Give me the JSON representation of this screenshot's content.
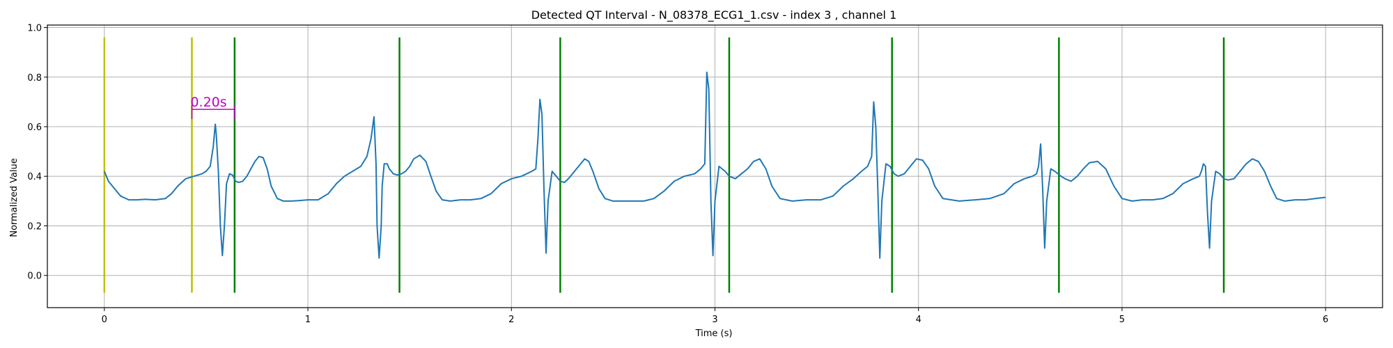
{
  "chart_data": {
    "type": "line",
    "title": "Detected QT Interval - N_08378_ECG1_1.csv - index 3 , channel 1",
    "xlabel": "Time (s)",
    "ylabel": "Normalized Value",
    "xlim": [
      -0.28,
      6.28
    ],
    "ylim": [
      -0.13,
      1.01
    ],
    "xticks": [
      0,
      1,
      2,
      3,
      4,
      5,
      6
    ],
    "yticks": [
      0.0,
      0.2,
      0.4,
      0.6,
      0.8,
      1.0
    ],
    "grid": true,
    "colors": {
      "signal": "#1f77b4",
      "onset_marker": "#bfbf00",
      "offset_marker": "#008000",
      "annotation": "#bf00bf",
      "grid": "#b0b0b0"
    },
    "vertical_markers": {
      "ymin": -0.07,
      "ymax": 0.96,
      "onset": [
        0.0,
        0.43
      ],
      "offset": [
        0.64,
        1.45,
        2.24,
        3.07,
        3.87,
        4.69,
        5.5
      ]
    },
    "annotation": {
      "text": "0.20s",
      "x_start": 0.43,
      "x_end": 0.64,
      "y": 0.67
    },
    "beat_r_times": [
      0.55,
      1.34,
      2.14,
      2.96,
      3.78,
      4.6,
      5.41
    ],
    "beat_r_peaks": [
      0.61,
      0.64,
      0.71,
      0.82,
      0.7,
      0.53,
      0.45
    ],
    "beat_s_troughs": [
      0.08,
      0.07,
      0.09,
      0.08,
      0.07,
      0.11,
      0.11
    ],
    "series": [
      {
        "x": [
          0.0,
          0.02,
          0.05,
          0.08,
          0.12,
          0.16,
          0.2,
          0.25,
          0.3,
          0.33,
          0.36,
          0.4,
          0.44,
          0.48,
          0.5,
          0.52,
          0.535,
          0.545,
          0.55,
          0.56,
          0.57,
          0.58,
          0.59,
          0.6,
          0.615,
          0.63,
          0.645,
          0.66,
          0.68,
          0.7,
          0.72,
          0.74,
          0.76,
          0.78,
          0.8,
          0.82,
          0.85,
          0.88,
          0.92,
          0.96,
          1.0,
          1.05,
          1.1,
          1.14,
          1.18,
          1.22,
          1.26,
          1.29,
          1.31,
          1.325,
          1.335,
          1.34,
          1.35,
          1.36,
          1.365,
          1.375,
          1.39,
          1.4,
          1.42,
          1.44,
          1.46,
          1.48,
          1.5,
          1.52,
          1.55,
          1.58,
          1.6,
          1.63,
          1.66,
          1.7,
          1.75,
          1.8,
          1.85,
          1.9,
          1.95,
          2.0,
          2.05,
          2.1,
          2.12,
          2.13,
          2.14,
          2.15,
          2.16,
          2.17,
          2.18,
          2.2,
          2.22,
          2.24,
          2.26,
          2.28,
          2.3,
          2.33,
          2.36,
          2.38,
          2.4,
          2.43,
          2.46,
          2.5,
          2.55,
          2.6,
          2.65,
          2.7,
          2.75,
          2.8,
          2.85,
          2.9,
          2.93,
          2.95,
          2.96,
          2.97,
          2.98,
          2.99,
          3.0,
          3.02,
          3.05,
          3.07,
          3.1,
          3.13,
          3.16,
          3.19,
          3.22,
          3.25,
          3.28,
          3.32,
          3.38,
          3.45,
          3.52,
          3.58,
          3.63,
          3.68,
          3.72,
          3.75,
          3.77,
          3.78,
          3.79,
          3.8,
          3.81,
          3.82,
          3.84,
          3.86,
          3.88,
          3.9,
          3.93,
          3.96,
          3.99,
          4.02,
          4.05,
          4.08,
          4.12,
          4.2,
          4.28,
          4.35,
          4.42,
          4.47,
          4.52,
          4.56,
          4.58,
          4.59,
          4.6,
          4.61,
          4.62,
          4.63,
          4.65,
          4.67,
          4.7,
          4.72,
          4.75,
          4.78,
          4.81,
          4.84,
          4.88,
          4.92,
          4.96,
          5.0,
          5.05,
          5.1,
          5.15,
          5.2,
          5.25,
          5.3,
          5.35,
          5.38,
          5.39,
          5.4,
          5.41,
          5.42,
          5.43,
          5.44,
          5.46,
          5.48,
          5.5,
          5.52,
          5.55,
          5.58,
          5.61,
          5.64,
          5.67,
          5.7,
          5.73,
          5.76,
          5.8,
          5.85,
          5.9,
          5.95,
          6.0
        ],
        "y": [
          0.42,
          0.38,
          0.35,
          0.32,
          0.305,
          0.305,
          0.307,
          0.305,
          0.31,
          0.33,
          0.36,
          0.39,
          0.4,
          0.41,
          0.42,
          0.44,
          0.52,
          0.61,
          0.57,
          0.42,
          0.2,
          0.08,
          0.2,
          0.37,
          0.41,
          0.405,
          0.38,
          0.375,
          0.38,
          0.4,
          0.43,
          0.46,
          0.48,
          0.475,
          0.43,
          0.36,
          0.31,
          0.3,
          0.3,
          0.302,
          0.305,
          0.305,
          0.33,
          0.37,
          0.4,
          0.42,
          0.44,
          0.48,
          0.55,
          0.64,
          0.45,
          0.2,
          0.07,
          0.2,
          0.36,
          0.45,
          0.45,
          0.43,
          0.41,
          0.405,
          0.41,
          0.42,
          0.44,
          0.47,
          0.485,
          0.46,
          0.41,
          0.34,
          0.305,
          0.3,
          0.305,
          0.305,
          0.31,
          0.33,
          0.37,
          0.39,
          0.4,
          0.42,
          0.43,
          0.55,
          0.71,
          0.65,
          0.35,
          0.09,
          0.3,
          0.42,
          0.4,
          0.38,
          0.375,
          0.39,
          0.41,
          0.44,
          0.47,
          0.46,
          0.42,
          0.35,
          0.31,
          0.3,
          0.3,
          0.3,
          0.3,
          0.31,
          0.34,
          0.38,
          0.4,
          0.41,
          0.43,
          0.45,
          0.82,
          0.75,
          0.3,
          0.08,
          0.3,
          0.44,
          0.42,
          0.4,
          0.39,
          0.41,
          0.43,
          0.46,
          0.47,
          0.43,
          0.36,
          0.31,
          0.3,
          0.305,
          0.305,
          0.32,
          0.36,
          0.39,
          0.42,
          0.44,
          0.48,
          0.7,
          0.6,
          0.35,
          0.07,
          0.3,
          0.45,
          0.44,
          0.41,
          0.4,
          0.41,
          0.44,
          0.47,
          0.465,
          0.43,
          0.36,
          0.31,
          0.3,
          0.305,
          0.31,
          0.33,
          0.37,
          0.39,
          0.4,
          0.41,
          0.44,
          0.53,
          0.35,
          0.11,
          0.3,
          0.43,
          0.42,
          0.4,
          0.39,
          0.38,
          0.4,
          0.43,
          0.455,
          0.46,
          0.43,
          0.36,
          0.31,
          0.3,
          0.305,
          0.305,
          0.31,
          0.33,
          0.37,
          0.39,
          0.4,
          0.42,
          0.45,
          0.44,
          0.25,
          0.11,
          0.3,
          0.42,
          0.41,
          0.39,
          0.385,
          0.39,
          0.42,
          0.45,
          0.47,
          0.46,
          0.42,
          0.36,
          0.31,
          0.3,
          0.305,
          0.305,
          0.31,
          0.315
        ]
      }
    ]
  }
}
